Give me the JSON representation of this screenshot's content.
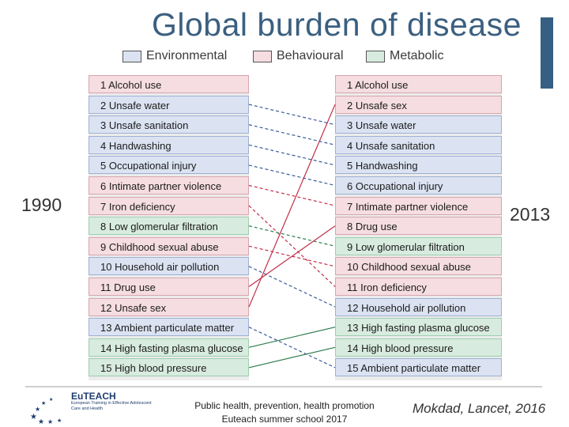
{
  "header": {
    "title": "Global burden of disease"
  },
  "legend": [
    {
      "label": "Environmental",
      "category": "env",
      "color": "#dbe3f2"
    },
    {
      "label": "Behavioural",
      "category": "beh",
      "color": "#f5dde1"
    },
    {
      "label": "Metabolic",
      "category": "met",
      "color": "#d8ebdf"
    }
  ],
  "years": {
    "left": "1990",
    "right": "2013"
  },
  "rank_1990": [
    {
      "label": "1 Alcohol use",
      "category": "beh"
    },
    {
      "label": "2 Unsafe water",
      "category": "env"
    },
    {
      "label": "3 Unsafe sanitation",
      "category": "env"
    },
    {
      "label": "4 Handwashing",
      "category": "env"
    },
    {
      "label": "5 Occupational injury",
      "category": "env"
    },
    {
      "label": "6 Intimate partner violence",
      "category": "beh"
    },
    {
      "label": "7 Iron deficiency",
      "category": "beh"
    },
    {
      "label": "8 Low glomerular filtration",
      "category": "met"
    },
    {
      "label": "9 Childhood sexual abuse",
      "category": "beh"
    },
    {
      "label": "10 Household air pollution",
      "category": "env"
    },
    {
      "label": "11 Drug use",
      "category": "beh"
    },
    {
      "label": "12 Unsafe sex",
      "category": "beh"
    },
    {
      "label": "13 Ambient particulate matter",
      "category": "env"
    },
    {
      "label": "14 High fasting plasma glucose",
      "category": "met"
    },
    {
      "label": "15 High blood pressure",
      "category": "met"
    }
  ],
  "rank_2013": [
    {
      "label": "1 Alcohol use",
      "category": "beh"
    },
    {
      "label": "2 Unsafe sex",
      "category": "beh"
    },
    {
      "label": "3 Unsafe water",
      "category": "env"
    },
    {
      "label": "4 Unsafe sanitation",
      "category": "env"
    },
    {
      "label": "5 Handwashing",
      "category": "env"
    },
    {
      "label": "6 Occupational injury",
      "category": "env"
    },
    {
      "label": "7 Intimate partner violence",
      "category": "beh"
    },
    {
      "label": "8 Drug use",
      "category": "beh"
    },
    {
      "label": "9 Low glomerular filtration",
      "category": "met"
    },
    {
      "label": "10 Childhood sexual abuse",
      "category": "beh"
    },
    {
      "label": "11 Iron deficiency",
      "category": "beh"
    },
    {
      "label": "12 Household air pollution",
      "category": "env"
    },
    {
      "label": "13 High fasting plasma glucose",
      "category": "met"
    },
    {
      "label": "14 High blood pressure",
      "category": "met"
    },
    {
      "label": "15 Ambient particulate matter",
      "category": "env"
    }
  ],
  "links": [
    {
      "from": 2,
      "to": 3,
      "style": "dashed",
      "category": "env"
    },
    {
      "from": 3,
      "to": 4,
      "style": "dashed",
      "category": "env"
    },
    {
      "from": 4,
      "to": 5,
      "style": "dashed",
      "category": "env"
    },
    {
      "from": 5,
      "to": 6,
      "style": "dashed",
      "category": "env"
    },
    {
      "from": 6,
      "to": 7,
      "style": "dashed",
      "category": "beh"
    },
    {
      "from": 7,
      "to": 11,
      "style": "dashed",
      "category": "beh"
    },
    {
      "from": 8,
      "to": 9,
      "style": "dashed",
      "category": "met"
    },
    {
      "from": 9,
      "to": 10,
      "style": "dashed",
      "category": "beh"
    },
    {
      "from": 10,
      "to": 12,
      "style": "dashed",
      "category": "env"
    },
    {
      "from": 11,
      "to": 8,
      "style": "solid",
      "category": "beh"
    },
    {
      "from": 12,
      "to": 2,
      "style": "solid",
      "category": "beh"
    },
    {
      "from": 13,
      "to": 15,
      "style": "dashed",
      "category": "env"
    },
    {
      "from": 14,
      "to": 13,
      "style": "solid",
      "category": "met"
    },
    {
      "from": 15,
      "to": 14,
      "style": "solid",
      "category": "met"
    }
  ],
  "link_colors": {
    "env": "#3a5a9a",
    "beh": "#c0304a",
    "met": "#2e7d4f"
  },
  "footer": {
    "line1": "Public health, prevention, health promotion",
    "line2": "Euteach summer school 2017",
    "citation": "Mokdad, Lancet, 2016",
    "logo_name": "EuTEACH",
    "logo_sub1": "European Training in Effective Adolescent",
    "logo_sub2": "Care and Health"
  }
}
